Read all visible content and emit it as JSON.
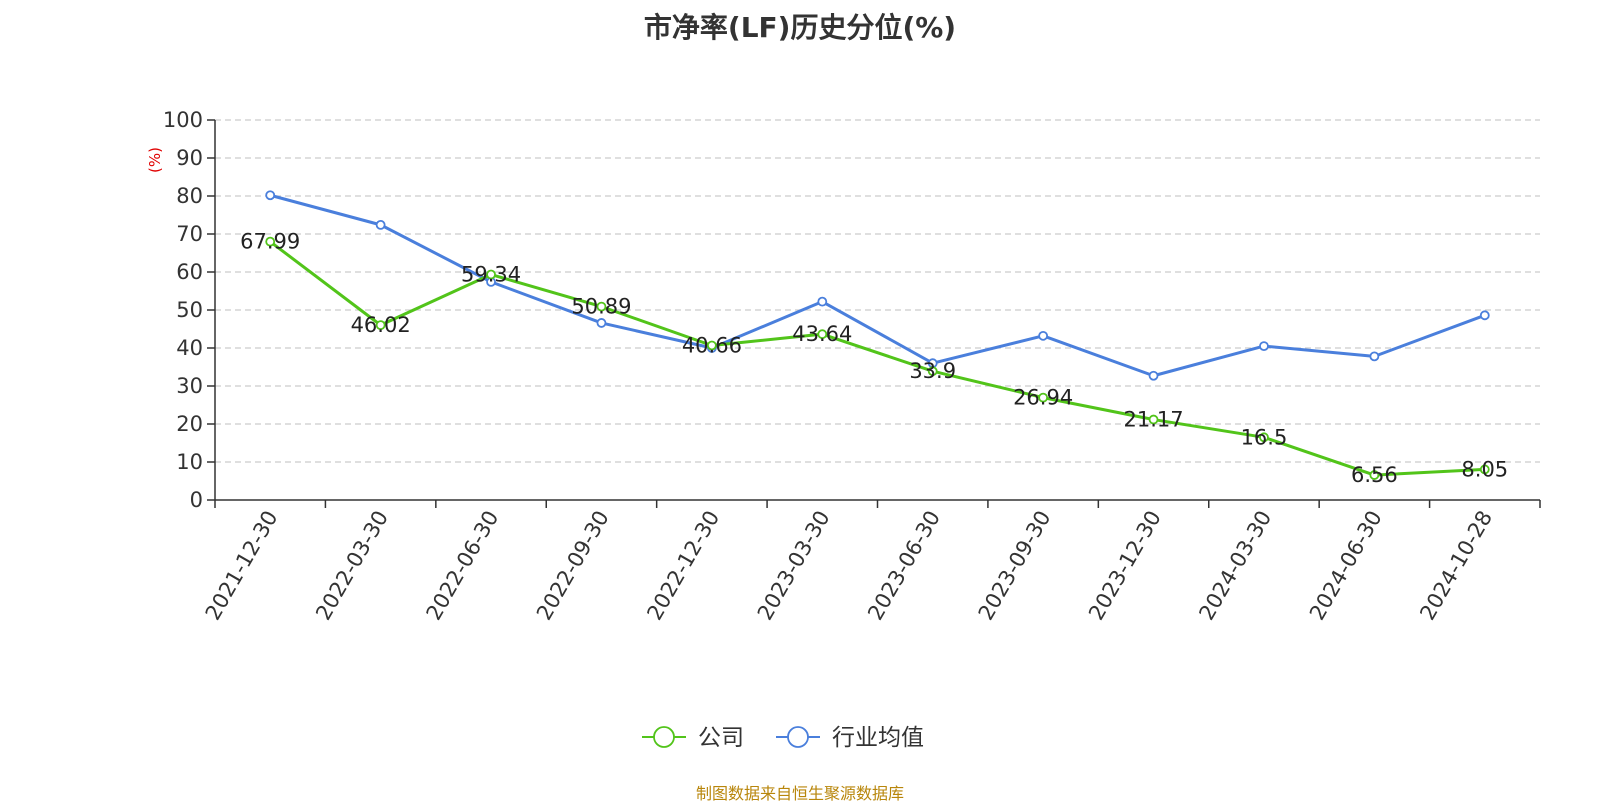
{
  "chart_data": {
    "type": "line",
    "title": "市净率(LF)历史分位(%)",
    "ylabel": "(%)",
    "xlabel": "",
    "ylim": [
      0,
      100
    ],
    "yticks": [
      0,
      10,
      20,
      30,
      40,
      50,
      60,
      70,
      80,
      90,
      100
    ],
    "categories": [
      "2021-12-30",
      "2022-03-30",
      "2022-06-30",
      "2022-09-30",
      "2022-12-30",
      "2023-03-30",
      "2023-06-30",
      "2023-09-30",
      "2023-12-30",
      "2024-03-30",
      "2024-06-30",
      "2024-10-28"
    ],
    "series": [
      {
        "name": "公司",
        "color": "#52c41a",
        "values": [
          67.99,
          46.02,
          59.34,
          50.89,
          40.66,
          43.64,
          33.9,
          26.94,
          21.17,
          16.5,
          6.56,
          8.05
        ],
        "show_labels": true
      },
      {
        "name": "行业均值",
        "color": "#4a7fdc",
        "values": [
          80.2,
          72.4,
          57.4,
          46.6,
          40.0,
          52.2,
          36.0,
          43.2,
          32.7,
          40.5,
          37.8,
          48.6
        ],
        "show_labels": false
      }
    ],
    "grid": true,
    "legend_position": "bottom-center"
  },
  "source_text": "制图数据来自恒生聚源数据库"
}
